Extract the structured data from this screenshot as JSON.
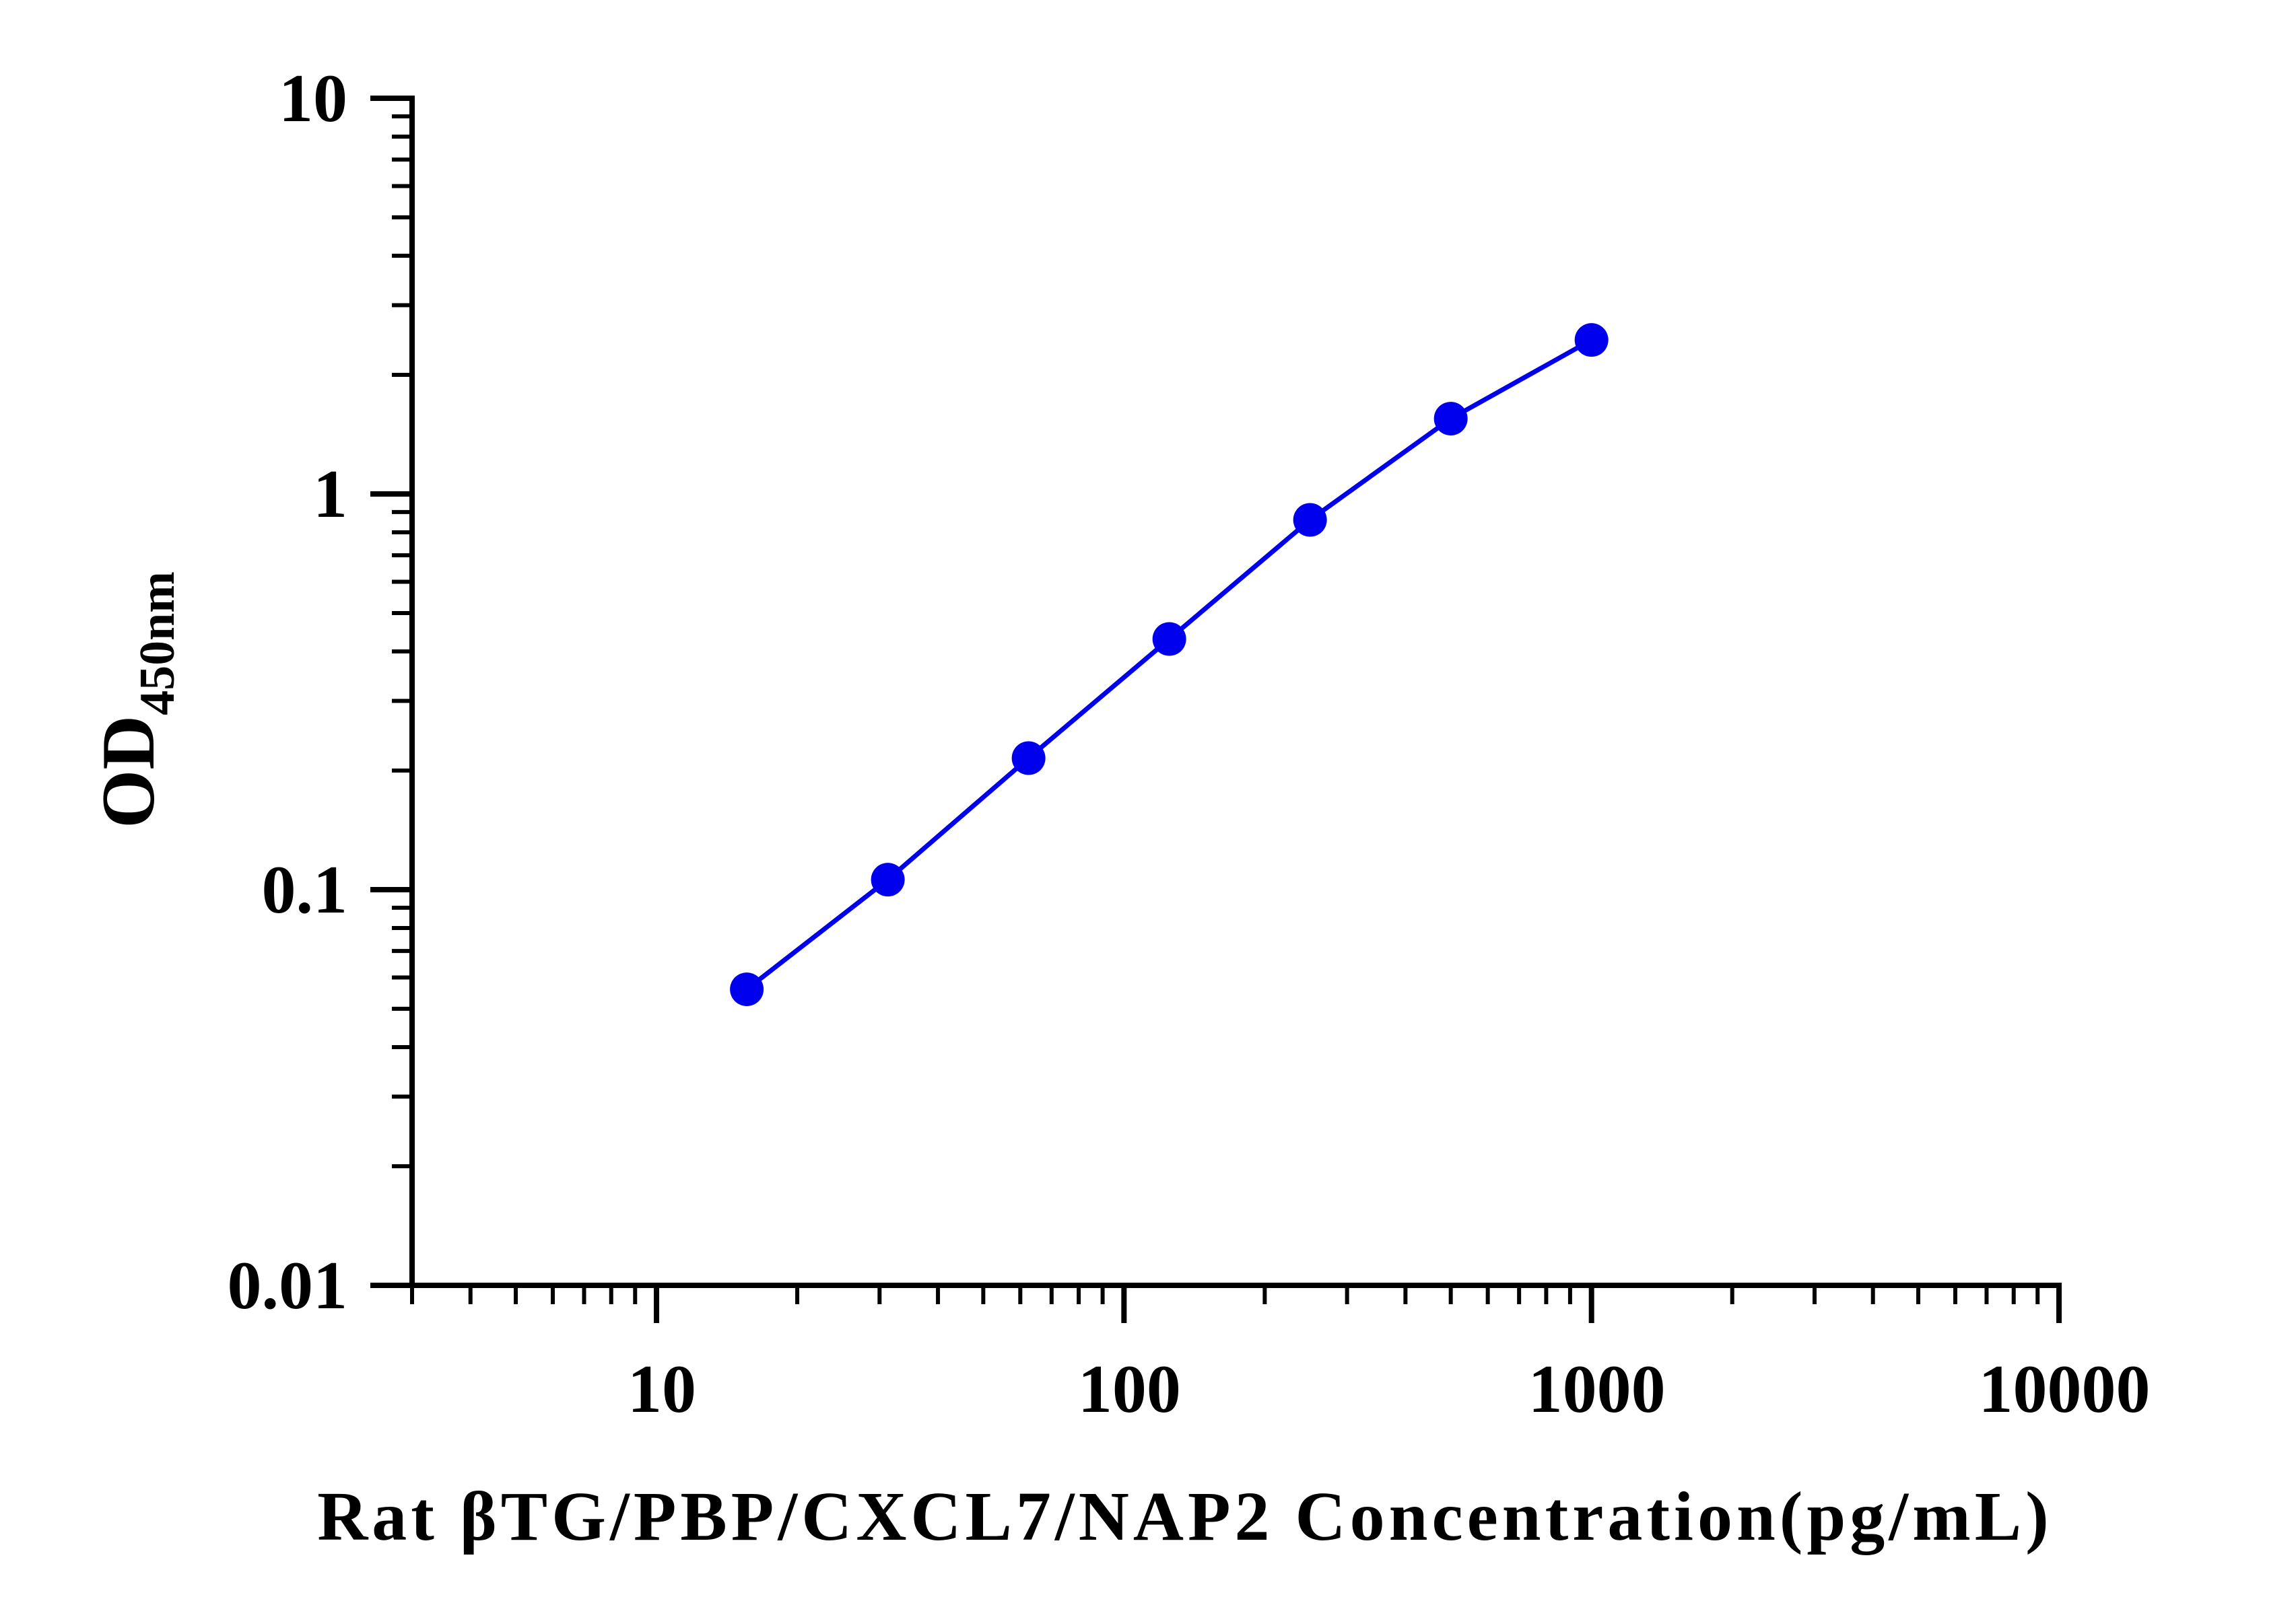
{
  "chart_data": {
    "type": "line",
    "title": "",
    "xlabel": "Rat βTG/PBP/CXCL7/NAP2 Concentration(pg/mL)",
    "ylabel": {
      "main": "OD",
      "sub": "450nm"
    },
    "xscale": "log",
    "yscale": "log",
    "xlim": [
      3,
      10000
    ],
    "ylim": [
      0.01,
      10
    ],
    "x_tick_labels": [
      "10",
      "100",
      "1000",
      "10000"
    ],
    "y_tick_labels": [
      "10",
      "1",
      "0.1",
      "0.01"
    ],
    "grid": false,
    "legend": "none",
    "series": [
      {
        "color": "#0000ee",
        "marker": "circle",
        "x": [
          15.6,
          31.25,
          62.5,
          125,
          250,
          500,
          1000
        ],
        "y": [
          0.056,
          0.106,
          0.215,
          0.43,
          0.86,
          1.55,
          2.45
        ]
      }
    ]
  }
}
